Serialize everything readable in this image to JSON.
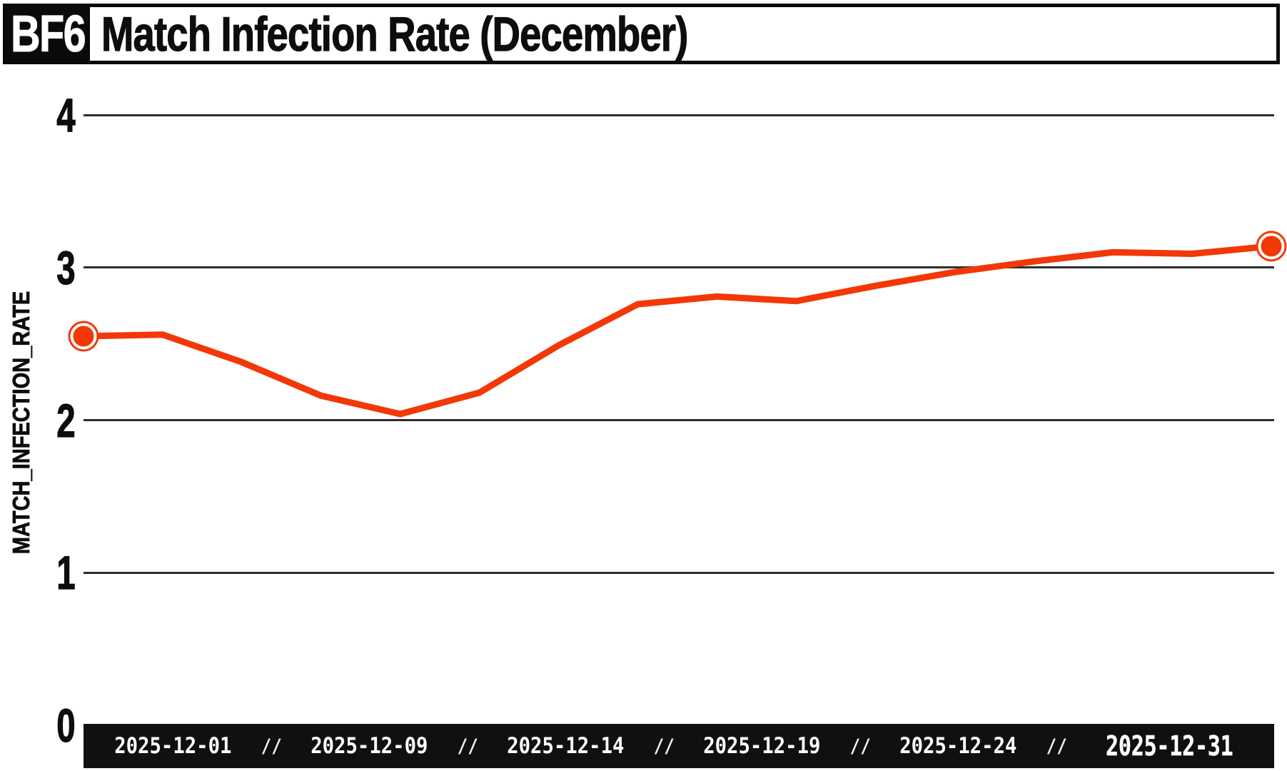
{
  "header": {
    "badge": "BF6",
    "title": "Match Infection Rate (December)"
  },
  "y_axis": {
    "label": "MATCH_INFECTION_RATE",
    "ticks": [
      "4",
      "3",
      "2",
      "1",
      "0"
    ]
  },
  "x_axis": {
    "separator": "//",
    "labels": [
      "2025-12-01",
      "2025-12-09",
      "2025-12-14",
      "2025-12-19",
      "2025-12-24",
      "2025-12-31"
    ],
    "highlight_last": true
  },
  "chart_data": {
    "type": "line",
    "title": "Match Infection Rate (December)",
    "xlabel": "",
    "ylabel": "MATCH_INFECTION_RATE",
    "ylim": [
      0,
      4
    ],
    "y_gridlines": [
      4,
      3,
      2,
      1,
      0
    ],
    "x_unit": "day of December 2025",
    "x_domain_days": [
      1,
      31
    ],
    "x_tick_labels": [
      "2025-12-01",
      "2025-12-09",
      "2025-12-14",
      "2025-12-19",
      "2025-12-24",
      "2025-12-31"
    ],
    "series": [
      {
        "name": "MATCH_INFECTION_RATE",
        "x": [
          1,
          3,
          5,
          7,
          9,
          11,
          13,
          15,
          17,
          19,
          21,
          23,
          25,
          27,
          29,
          31
        ],
        "values": [
          2.55,
          2.56,
          2.38,
          2.16,
          2.04,
          2.18,
          2.49,
          2.76,
          2.81,
          2.78,
          2.88,
          2.97,
          3.04,
          3.1,
          3.09,
          3.14
        ]
      }
    ],
    "markers": "ring dot on first and last point",
    "legend": "none",
    "grid": "horizontal"
  },
  "colors": {
    "line": "#F23808",
    "marker_ring": "#ffffff",
    "grid": "#2e2e2e",
    "axis_text": "#0d0d0d",
    "bar_bg": "#101010",
    "bar_text": "#ffffff",
    "header_border": "#0a0a0a",
    "badge_bg": "#0a0a0a",
    "badge_text": "#ffffff",
    "background": "#ffffff"
  }
}
